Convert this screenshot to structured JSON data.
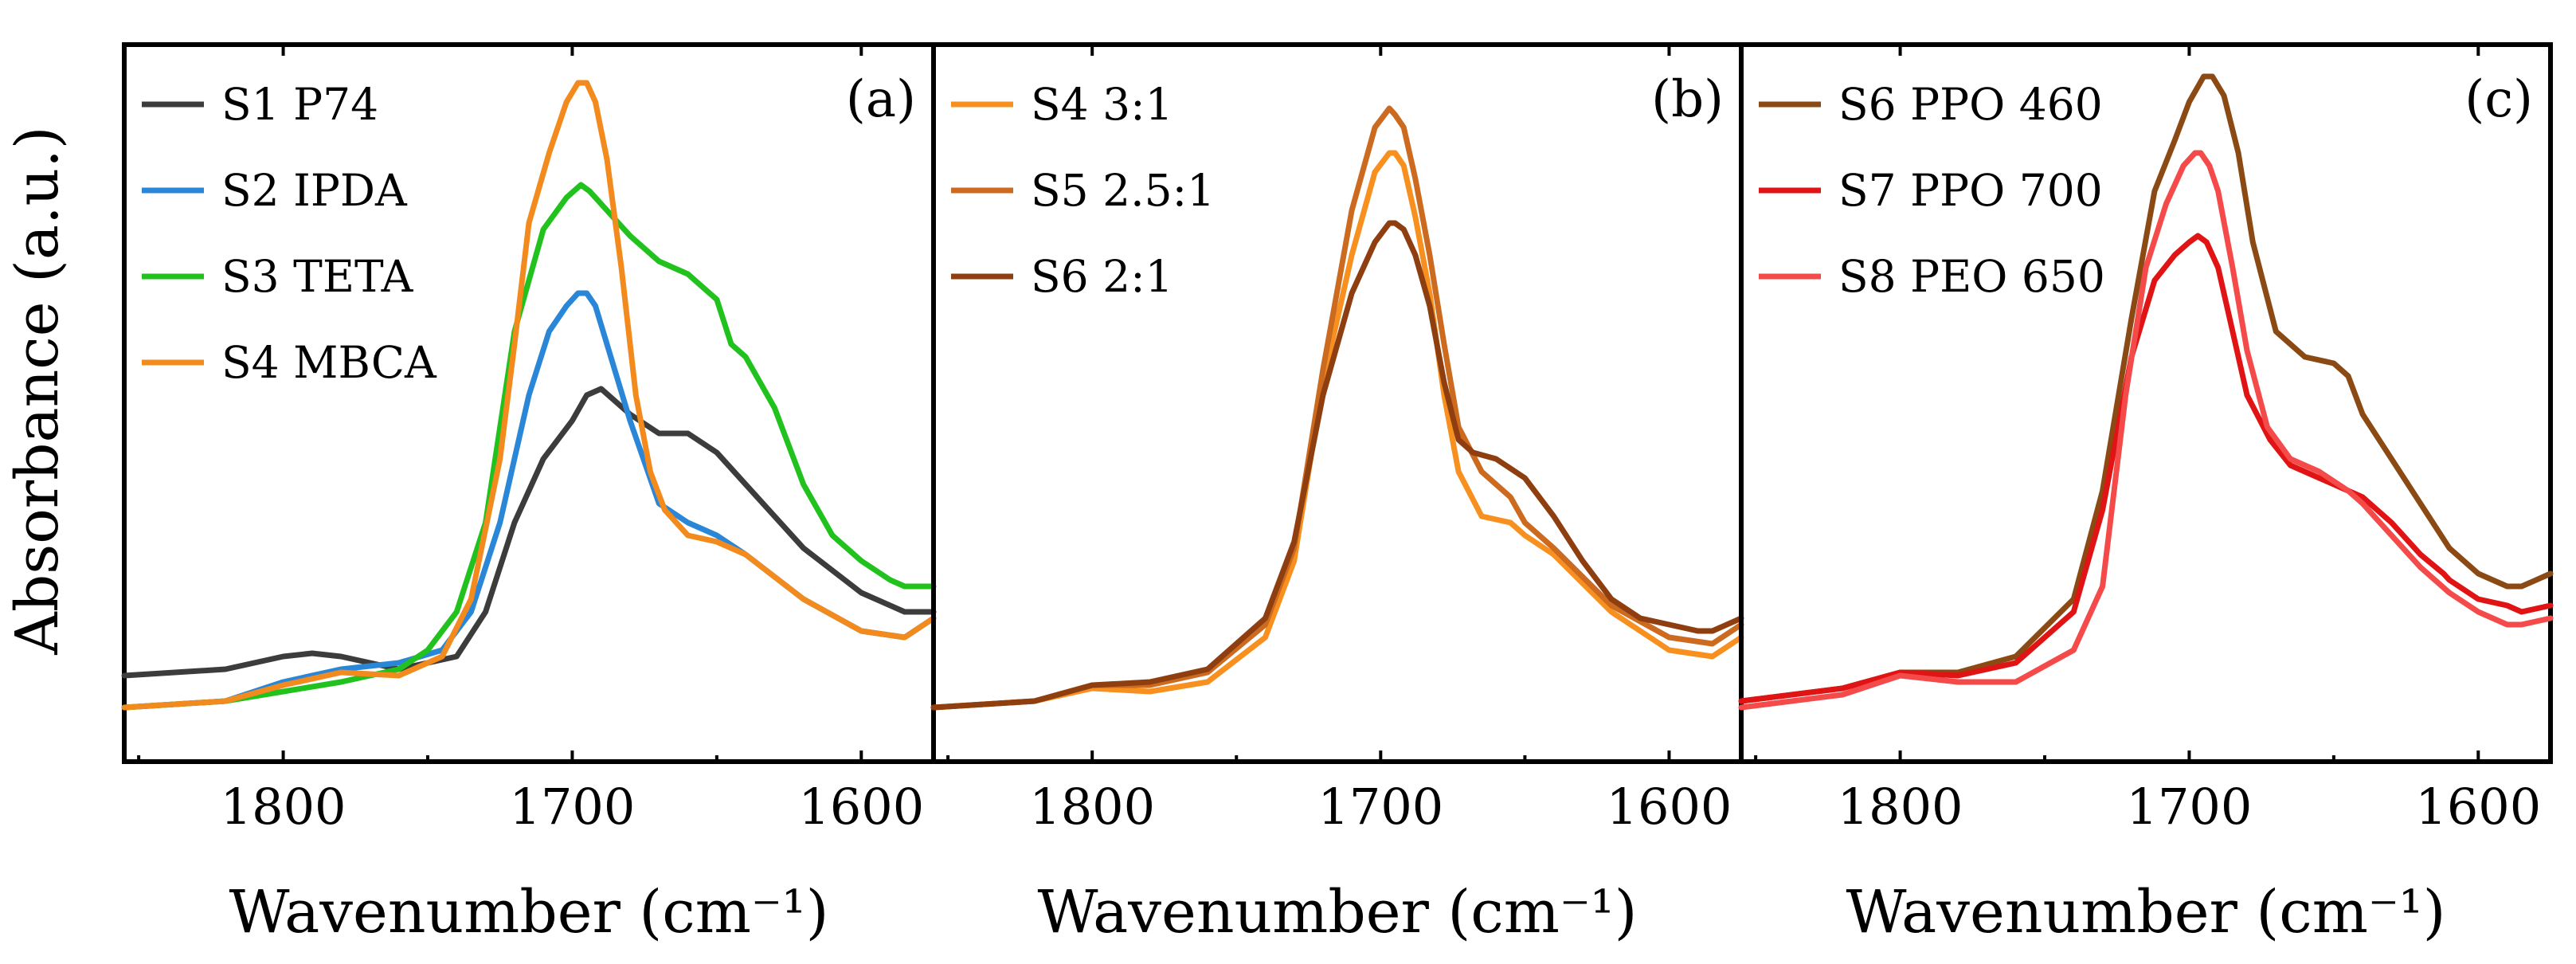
{
  "figure": {
    "ylabel": "Absorbance (a.u.)"
  },
  "chart_data": [
    {
      "type": "line",
      "panel_label": "(a)",
      "xlabel": "Wavenumber (cm⁻¹)",
      "ylabel": "Absorbance (a.u.)",
      "xlim": [
        1855,
        1575
      ],
      "ylim": [
        0,
        1
      ],
      "xticks": [
        "1800",
        "1700",
        "1600"
      ],
      "grid": false,
      "legend": "top-left",
      "series": [
        {
          "name": "S1 P74",
          "color": "#3c3c3c",
          "x": [
            1855,
            1820,
            1800,
            1790,
            1780,
            1760,
            1740,
            1730,
            1720,
            1710,
            1700,
            1695,
            1690,
            1680,
            1670,
            1660,
            1650,
            1640,
            1620,
            1600,
            1585,
            1575
          ],
          "y": [
            0.06,
            0.07,
            0.09,
            0.095,
            0.09,
            0.07,
            0.09,
            0.16,
            0.3,
            0.4,
            0.46,
            0.5,
            0.51,
            0.47,
            0.44,
            0.44,
            0.41,
            0.36,
            0.26,
            0.19,
            0.16,
            0.16
          ]
        },
        {
          "name": "S2 IPDA",
          "color": "#2a86d6",
          "x": [
            1855,
            1820,
            1800,
            1780,
            1760,
            1745,
            1735,
            1725,
            1715,
            1708,
            1702,
            1698,
            1695,
            1692,
            1688,
            1680,
            1670,
            1660,
            1650,
            1640,
            1620,
            1600,
            1585,
            1575
          ],
          "y": [
            0.01,
            0.02,
            0.05,
            0.07,
            0.08,
            0.1,
            0.16,
            0.3,
            0.5,
            0.6,
            0.64,
            0.66,
            0.66,
            0.64,
            0.58,
            0.46,
            0.33,
            0.3,
            0.28,
            0.25,
            0.18,
            0.13,
            0.12,
            0.15
          ]
        },
        {
          "name": "S3 TETA",
          "color": "#22c21e",
          "x": [
            1855,
            1820,
            1800,
            1780,
            1760,
            1750,
            1740,
            1730,
            1720,
            1710,
            1702,
            1697,
            1694,
            1690,
            1680,
            1670,
            1660,
            1650,
            1645,
            1640,
            1630,
            1620,
            1610,
            1600,
            1590,
            1585,
            1575
          ],
          "y": [
            0.01,
            0.02,
            0.035,
            0.05,
            0.07,
            0.1,
            0.16,
            0.3,
            0.6,
            0.76,
            0.81,
            0.83,
            0.82,
            0.8,
            0.75,
            0.71,
            0.69,
            0.65,
            0.58,
            0.56,
            0.48,
            0.36,
            0.28,
            0.24,
            0.21,
            0.2,
            0.2
          ]
        },
        {
          "name": "S4 MBCA",
          "color": "#f28a1d",
          "x": [
            1855,
            1820,
            1800,
            1780,
            1760,
            1745,
            1735,
            1725,
            1720,
            1715,
            1708,
            1702,
            1698,
            1695,
            1692,
            1688,
            1683,
            1678,
            1673,
            1668,
            1660,
            1650,
            1640,
            1620,
            1600,
            1585,
            1575
          ],
          "y": [
            0.01,
            0.02,
            0.045,
            0.065,
            0.06,
            0.09,
            0.18,
            0.4,
            0.58,
            0.77,
            0.88,
            0.96,
            0.99,
            0.99,
            0.96,
            0.87,
            0.7,
            0.5,
            0.38,
            0.32,
            0.28,
            0.27,
            0.25,
            0.18,
            0.13,
            0.12,
            0.15
          ]
        }
      ]
    },
    {
      "type": "line",
      "panel_label": "(b)",
      "xlabel": "Wavenumber (cm⁻¹)",
      "ylabel": "Absorbance (a.u.)",
      "xlim": [
        1855,
        1575
      ],
      "ylim": [
        0,
        1
      ],
      "xticks": [
        "1800",
        "1700",
        "1600"
      ],
      "grid": false,
      "legend": "top-left",
      "series": [
        {
          "name": "S4 3:1",
          "color": "#f7901e",
          "x": [
            1855,
            1820,
            1800,
            1780,
            1760,
            1740,
            1730,
            1720,
            1710,
            1702,
            1697,
            1695,
            1692,
            1688,
            1683,
            1678,
            1673,
            1665,
            1655,
            1650,
            1640,
            1620,
            1600,
            1585,
            1575
          ],
          "y": [
            0.01,
            0.02,
            0.04,
            0.035,
            0.05,
            0.12,
            0.24,
            0.52,
            0.72,
            0.85,
            0.88,
            0.88,
            0.86,
            0.78,
            0.66,
            0.5,
            0.38,
            0.31,
            0.3,
            0.28,
            0.25,
            0.16,
            0.1,
            0.09,
            0.12
          ]
        },
        {
          "name": "S5 2.5:1",
          "color": "#cc6a1f",
          "x": [
            1855,
            1820,
            1800,
            1780,
            1760,
            1740,
            1730,
            1720,
            1710,
            1702,
            1697,
            1695,
            1692,
            1688,
            1683,
            1678,
            1673,
            1665,
            1655,
            1650,
            1640,
            1620,
            1600,
            1585,
            1575
          ],
          "y": [
            0.01,
            0.02,
            0.045,
            0.045,
            0.065,
            0.14,
            0.26,
            0.54,
            0.79,
            0.92,
            0.95,
            0.94,
            0.92,
            0.84,
            0.72,
            0.58,
            0.45,
            0.38,
            0.34,
            0.3,
            0.26,
            0.17,
            0.12,
            0.11,
            0.14
          ]
        },
        {
          "name": "S6 2:1",
          "color": "#8f3e10",
          "x": [
            1855,
            1820,
            1800,
            1780,
            1760,
            1740,
            1730,
            1720,
            1710,
            1702,
            1697,
            1695,
            1692,
            1688,
            1683,
            1678,
            1673,
            1668,
            1660,
            1650,
            1640,
            1630,
            1620,
            1610,
            1600,
            1590,
            1585,
            1575
          ],
          "y": [
            0.01,
            0.02,
            0.045,
            0.05,
            0.07,
            0.15,
            0.27,
            0.5,
            0.66,
            0.74,
            0.77,
            0.77,
            0.76,
            0.72,
            0.64,
            0.52,
            0.43,
            0.41,
            0.4,
            0.37,
            0.31,
            0.24,
            0.18,
            0.15,
            0.14,
            0.13,
            0.13,
            0.15
          ]
        }
      ]
    },
    {
      "type": "line",
      "panel_label": "(c)",
      "xlabel": "Wavenumber (cm⁻¹)",
      "ylabel": "Absorbance (a.u.)",
      "xlim": [
        1855,
        1575
      ],
      "ylim": [
        0,
        1
      ],
      "xticks": [
        "1800",
        "1700",
        "1600"
      ],
      "grid": false,
      "legend": "top-left",
      "series": [
        {
          "name": "S6 PPO 460",
          "color": "#8b4a14",
          "x": [
            1855,
            1820,
            1800,
            1780,
            1760,
            1740,
            1730,
            1720,
            1712,
            1705,
            1700,
            1695,
            1692,
            1688,
            1683,
            1678,
            1670,
            1660,
            1650,
            1645,
            1640,
            1630,
            1620,
            1610,
            1600,
            1590,
            1585,
            1575
          ],
          "y": [
            0.02,
            0.04,
            0.065,
            0.065,
            0.09,
            0.18,
            0.35,
            0.62,
            0.82,
            0.9,
            0.96,
            1.0,
            1.0,
            0.97,
            0.88,
            0.74,
            0.6,
            0.56,
            0.55,
            0.53,
            0.47,
            0.4,
            0.33,
            0.26,
            0.22,
            0.2,
            0.2,
            0.22
          ]
        },
        {
          "name": "S7 PPO 700",
          "color": "#e01414",
          "x": [
            1855,
            1820,
            1800,
            1780,
            1760,
            1740,
            1730,
            1720,
            1712,
            1705,
            1700,
            1697,
            1694,
            1690,
            1685,
            1680,
            1672,
            1665,
            1655,
            1645,
            1640,
            1630,
            1620,
            1612,
            1610,
            1600,
            1590,
            1585,
            1575
          ],
          "y": [
            0.02,
            0.04,
            0.065,
            0.06,
            0.08,
            0.16,
            0.32,
            0.56,
            0.68,
            0.72,
            0.74,
            0.75,
            0.74,
            0.7,
            0.6,
            0.5,
            0.43,
            0.39,
            0.37,
            0.35,
            0.34,
            0.3,
            0.25,
            0.22,
            0.21,
            0.18,
            0.17,
            0.16,
            0.17
          ]
        },
        {
          "name": "S8 PEO 650",
          "color": "#f44a4a",
          "x": [
            1855,
            1820,
            1800,
            1780,
            1760,
            1740,
            1730,
            1722,
            1715,
            1708,
            1702,
            1698,
            1696,
            1693,
            1690,
            1685,
            1680,
            1673,
            1665,
            1655,
            1645,
            1640,
            1630,
            1620,
            1610,
            1600,
            1590,
            1585,
            1575
          ],
          "y": [
            0.01,
            0.03,
            0.06,
            0.05,
            0.05,
            0.1,
            0.2,
            0.5,
            0.7,
            0.8,
            0.86,
            0.88,
            0.88,
            0.86,
            0.82,
            0.7,
            0.57,
            0.45,
            0.4,
            0.38,
            0.35,
            0.33,
            0.28,
            0.23,
            0.19,
            0.16,
            0.14,
            0.14,
            0.15
          ]
        }
      ]
    }
  ]
}
